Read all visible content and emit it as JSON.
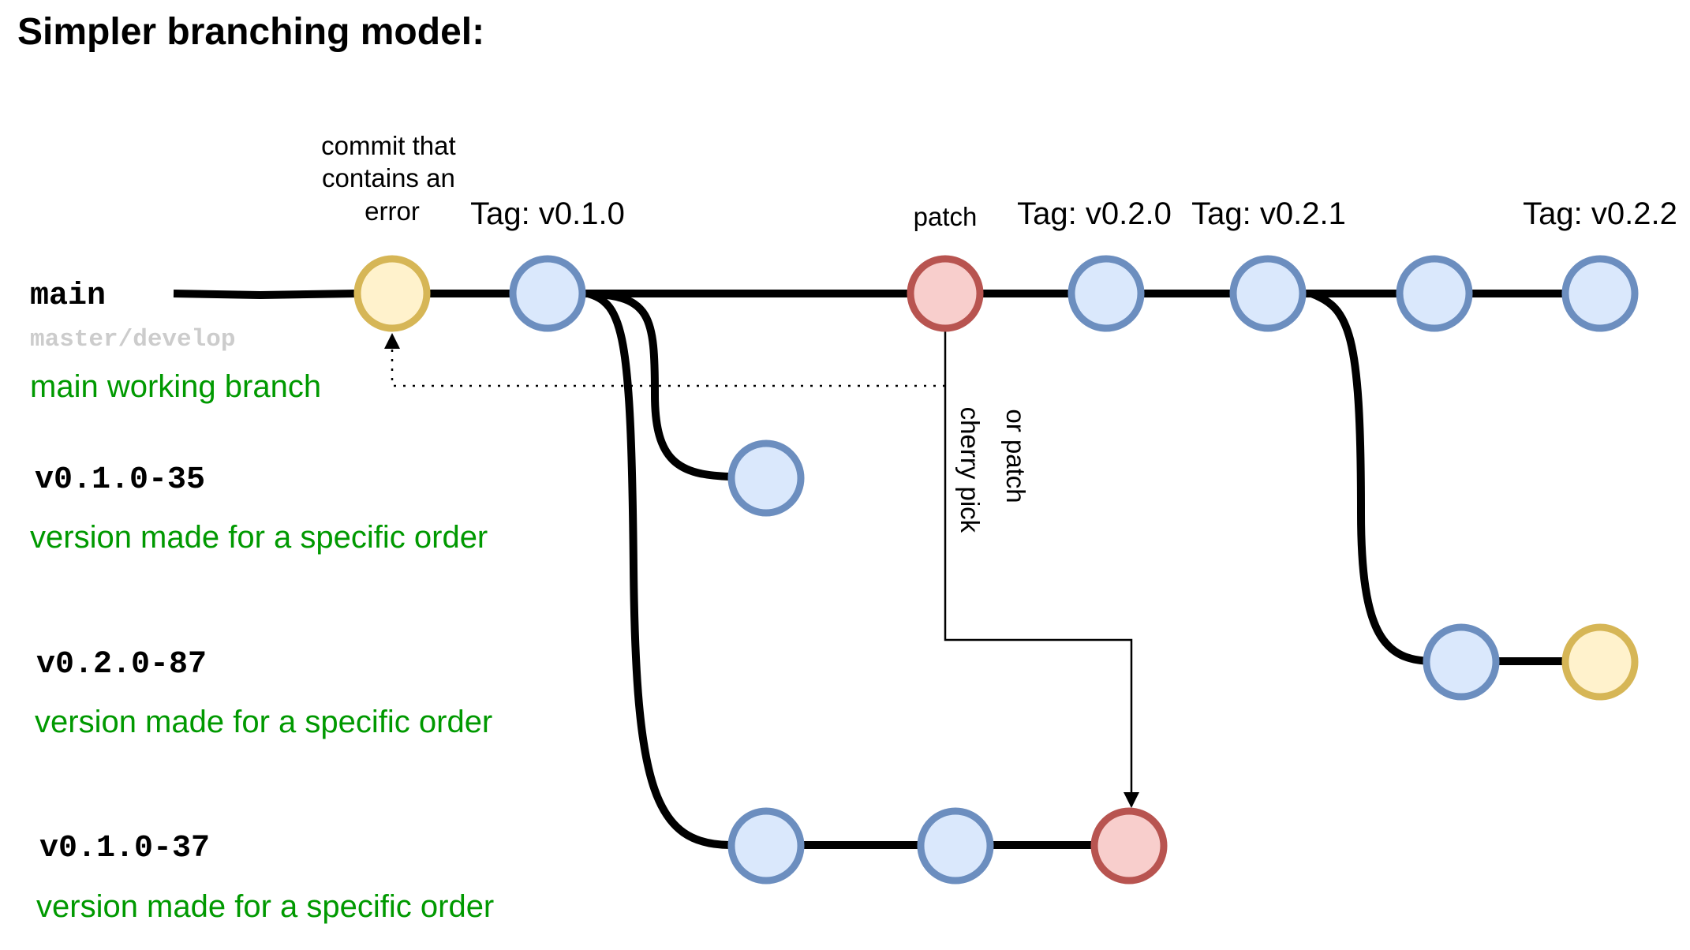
{
  "title": "Simpler branching model:",
  "branches": {
    "main": {
      "name": "main",
      "alias": "master/develop",
      "description": "main working branch"
    },
    "b1": {
      "name": "v0.1.0-35",
      "description": "version made for a specific order"
    },
    "b2": {
      "name": "v0.2.0-87",
      "description": "version made for a specific order"
    },
    "b3": {
      "name": "v0.1.0-37",
      "description": "version made for a specific order"
    }
  },
  "annotations": {
    "error_commit": [
      "commit that",
      "contains an",
      "error"
    ],
    "patch": "patch",
    "cherry_pick": [
      "cherry pick",
      "or patch"
    ]
  },
  "tags": {
    "t1": "Tag: v0.1.0",
    "t2": "Tag: v0.2.0",
    "t3": "Tag: v0.2.1",
    "t4": "Tag: v0.2.2"
  },
  "colors": {
    "normal_fill": "#dae8fc",
    "normal_stroke": "#6c8ebf",
    "error_fill": "#fff2cc",
    "error_stroke": "#d6b656",
    "patch_fill": "#f8cecc",
    "patch_stroke": "#b85450",
    "branch_label": "#000000",
    "alias_text": "#cccccc",
    "description_text": "#009900",
    "line": "#000000"
  }
}
